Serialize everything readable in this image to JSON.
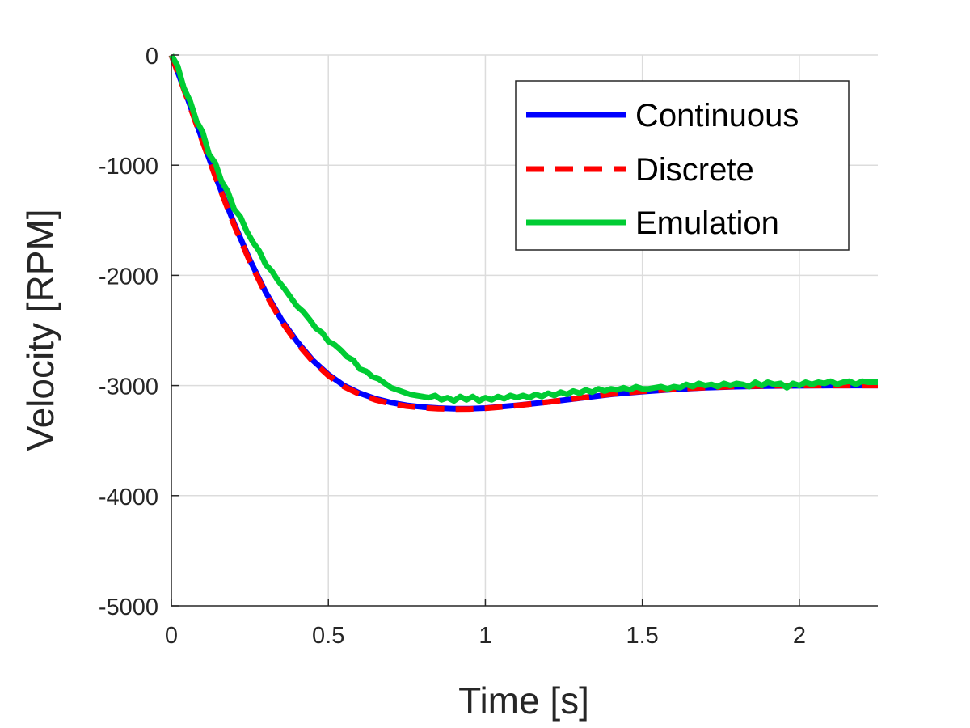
{
  "chart_data": {
    "type": "line",
    "title": "",
    "xlabel": "Time [s]",
    "ylabel": "Velocity [RPM]",
    "xlim": [
      0,
      2.25
    ],
    "ylim": [
      -5000,
      0
    ],
    "xticks": [
      0,
      0.5,
      1,
      1.5,
      2
    ],
    "xtick_labels": [
      "0",
      "0.5",
      "1",
      "1.5",
      "2"
    ],
    "yticks": [
      0,
      -1000,
      -2000,
      -3000,
      -4000,
      -5000
    ],
    "ytick_labels": [
      "0",
      "-1000",
      "-2000",
      "-3000",
      "-4000",
      "-5000"
    ],
    "grid": true,
    "legend_position": "top-right",
    "series": [
      {
        "name": "Continuous",
        "color": "#0000ff",
        "style": "solid",
        "x": [
          0,
          0.05,
          0.1,
          0.15,
          0.2,
          0.25,
          0.3,
          0.35,
          0.4,
          0.45,
          0.5,
          0.55,
          0.6,
          0.65,
          0.7,
          0.75,
          0.8,
          0.85,
          0.9,
          0.95,
          1.0,
          1.1,
          1.2,
          1.3,
          1.4,
          1.5,
          1.6,
          1.7,
          1.8,
          1.9,
          2.0,
          2.1,
          2.25
        ],
        "y": [
          0,
          -380,
          -780,
          -1170,
          -1530,
          -1860,
          -2150,
          -2400,
          -2600,
          -2770,
          -2900,
          -3000,
          -3070,
          -3120,
          -3155,
          -3180,
          -3195,
          -3205,
          -3210,
          -3210,
          -3205,
          -3180,
          -3150,
          -3115,
          -3080,
          -3055,
          -3035,
          -3020,
          -3010,
          -3005,
          -3002,
          -3000,
          -3000
        ]
      },
      {
        "name": "Discrete",
        "color": "#ff0000",
        "style": "dashed",
        "x": [
          0,
          0.05,
          0.1,
          0.15,
          0.2,
          0.25,
          0.3,
          0.35,
          0.4,
          0.45,
          0.5,
          0.55,
          0.6,
          0.65,
          0.7,
          0.75,
          0.8,
          0.85,
          0.9,
          0.95,
          1.0,
          1.1,
          1.2,
          1.3,
          1.4,
          1.5,
          1.6,
          1.7,
          1.8,
          1.9,
          2.0,
          2.1,
          2.25
        ],
        "y": [
          0,
          -390,
          -790,
          -1180,
          -1545,
          -1875,
          -2165,
          -2415,
          -2615,
          -2780,
          -2910,
          -3010,
          -3080,
          -3130,
          -3165,
          -3188,
          -3202,
          -3210,
          -3214,
          -3213,
          -3207,
          -3182,
          -3150,
          -3113,
          -3078,
          -3052,
          -3032,
          -3018,
          -3008,
          -3003,
          -3001,
          -3000,
          -3000
        ]
      },
      {
        "name": "Emulation",
        "color": "#00cc33",
        "style": "solid",
        "x": [
          0,
          0.02,
          0.04,
          0.06,
          0.08,
          0.1,
          0.12,
          0.14,
          0.16,
          0.18,
          0.2,
          0.22,
          0.24,
          0.26,
          0.28,
          0.3,
          0.32,
          0.34,
          0.36,
          0.38,
          0.4,
          0.42,
          0.44,
          0.46,
          0.48,
          0.5,
          0.52,
          0.54,
          0.56,
          0.58,
          0.6,
          0.62,
          0.64,
          0.66,
          0.68,
          0.7,
          0.72,
          0.74,
          0.76,
          0.78,
          0.8,
          0.82,
          0.84,
          0.86,
          0.88,
          0.9,
          0.92,
          0.94,
          0.96,
          0.98,
          1.0,
          1.02,
          1.04,
          1.06,
          1.08,
          1.1,
          1.12,
          1.14,
          1.16,
          1.18,
          1.2,
          1.22,
          1.24,
          1.26,
          1.28,
          1.3,
          1.32,
          1.34,
          1.36,
          1.38,
          1.4,
          1.42,
          1.44,
          1.46,
          1.48,
          1.5,
          1.52,
          1.54,
          1.56,
          1.58,
          1.6,
          1.62,
          1.64,
          1.66,
          1.68,
          1.7,
          1.72,
          1.74,
          1.76,
          1.78,
          1.8,
          1.82,
          1.84,
          1.86,
          1.88,
          1.9,
          1.92,
          1.94,
          1.96,
          1.98,
          2.0,
          2.02,
          2.04,
          2.06,
          2.08,
          2.1,
          2.12,
          2.14,
          2.16,
          2.18,
          2.2,
          2.22,
          2.25
        ],
        "y": [
          0,
          -100,
          -300,
          -420,
          -600,
          -700,
          -900,
          -980,
          -1150,
          -1240,
          -1400,
          -1470,
          -1600,
          -1700,
          -1780,
          -1900,
          -1960,
          -2050,
          -2120,
          -2200,
          -2280,
          -2330,
          -2400,
          -2480,
          -2520,
          -2600,
          -2630,
          -2680,
          -2740,
          -2770,
          -2850,
          -2870,
          -2920,
          -2940,
          -2980,
          -3020,
          -3040,
          -3060,
          -3080,
          -3090,
          -3100,
          -3110,
          -3090,
          -3130,
          -3110,
          -3140,
          -3100,
          -3130,
          -3100,
          -3140,
          -3110,
          -3130,
          -3100,
          -3120,
          -3090,
          -3110,
          -3090,
          -3110,
          -3080,
          -3100,
          -3070,
          -3090,
          -3060,
          -3080,
          -3050,
          -3070,
          -3040,
          -3060,
          -3030,
          -3050,
          -3030,
          -3040,
          -3020,
          -3040,
          -3010,
          -3030,
          -3030,
          -3020,
          -3010,
          -3030,
          -3010,
          -3020,
          -2990,
          -3010,
          -2980,
          -3000,
          -2990,
          -3010,
          -2980,
          -3000,
          -2980,
          -2990,
          -3010,
          -2970,
          -3000,
          -2970,
          -2990,
          -2980,
          -3020,
          -2980,
          -3000,
          -2970,
          -2990,
          -2970,
          -2980,
          -2960,
          -2990,
          -2970,
          -2960,
          -2990,
          -2960,
          -2970,
          -2970
        ]
      }
    ]
  }
}
